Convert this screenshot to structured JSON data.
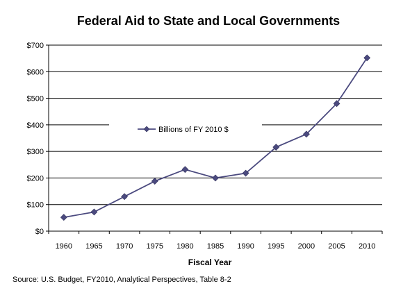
{
  "chart_data": {
    "type": "line",
    "title": "Federal Aid to State and Local Governments",
    "xlabel": "Fiscal Year",
    "ylabel": "",
    "x": [
      "1960",
      "1965",
      "1970",
      "1975",
      "1980",
      "1985",
      "1990",
      "1995",
      "2000",
      "2005",
      "2010"
    ],
    "series": [
      {
        "name": "Billions of FY 2010 $",
        "values": [
          52,
          72,
          130,
          188,
          232,
          200,
          218,
          316,
          365,
          480,
          652
        ],
        "color": "#4B4A7F"
      }
    ],
    "ylim": [
      0,
      700
    ],
    "yticks": [
      "$0",
      "$100",
      "$200",
      "$300",
      "$400",
      "$500",
      "$600",
      "$700"
    ],
    "grid": "horizontal",
    "legend": "center"
  },
  "source": "Source: U.S. Budget, FY2010, Analytical Perspectives, Table 8-2"
}
